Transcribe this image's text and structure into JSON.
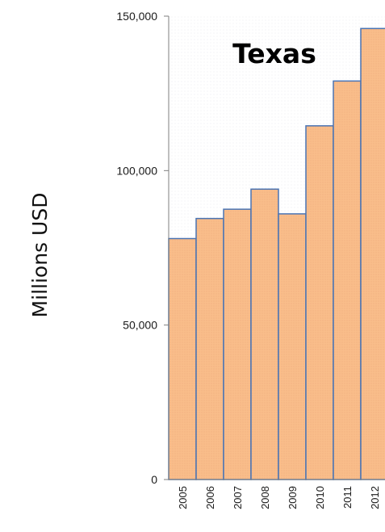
{
  "chart_data": {
    "type": "bar",
    "title": "Texas",
    "xlabel": "",
    "ylabel": "Millions USD",
    "categories": [
      "2005",
      "2006",
      "2007",
      "2008",
      "2009",
      "2010",
      "2011",
      "2012"
    ],
    "values": [
      78000,
      84500,
      87500,
      94000,
      86000,
      114500,
      129000,
      146000
    ],
    "ylim": [
      0,
      150000
    ],
    "yticks": [
      0,
      50000,
      100000,
      150000
    ],
    "ytick_labels": [
      "0",
      "50,000",
      "100,000",
      "150,000"
    ],
    "grid": false,
    "colors": {
      "bar_fill": "#f9bd8a",
      "bar_stroke": "#4a74b4",
      "axis": "#7f7f7f",
      "plot_background": "#f4f4f6"
    }
  }
}
